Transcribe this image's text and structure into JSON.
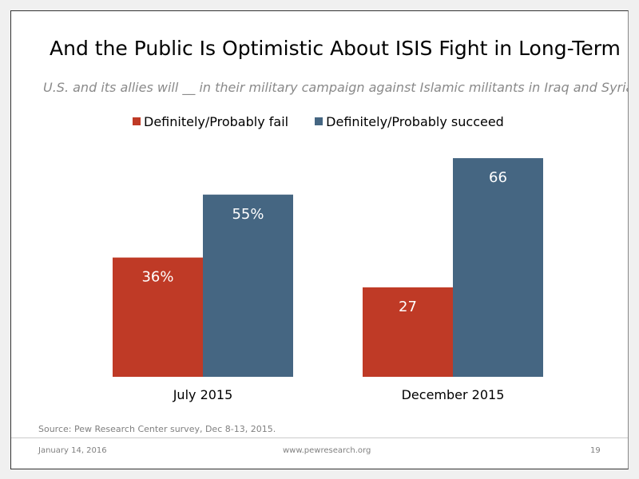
{
  "slide": {
    "title": "And the Public Is Optimistic About ISIS Fight in Long-Term",
    "subtitle": "U.S. and its allies will __ in their military campaign against Islamic militants in Iraq and Syria",
    "source": "Source: Pew Research Center survey, Dec 8-13, 2015.",
    "footer": {
      "date": "January 14, 2016",
      "url": "www.pewresearch.org",
      "page": "19"
    }
  },
  "chart_data": {
    "type": "bar",
    "title": "And the Public Is Optimistic About ISIS Fight in Long-Term",
    "categories": [
      "July 2015",
      "December 2015"
    ],
    "series": [
      {
        "name": "Definitely/Probably fail",
        "values": [
          36,
          27
        ],
        "labels": [
          "36%",
          "27"
        ],
        "color": "#bf3a26"
      },
      {
        "name": "Definitely/Probably succeed",
        "values": [
          55,
          66
        ],
        "labels": [
          "55%",
          "66"
        ],
        "color": "#456682"
      }
    ],
    "ylim": [
      0,
      100
    ],
    "grid": false,
    "legend": "top"
  }
}
